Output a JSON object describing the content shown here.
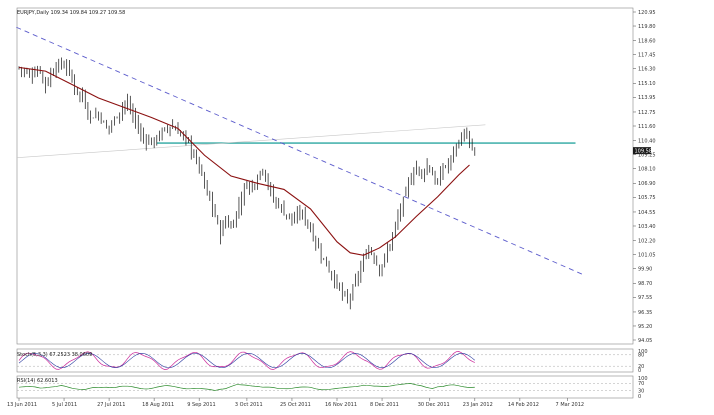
{
  "chart_title": "EURJPY,Daily  109.34 109.84 109.27 109.58",
  "colors": {
    "background": "#ffffff",
    "candle": "#111111",
    "moving_average": "#8b1010",
    "resistance_line": "#2aa6a0",
    "trendline": "#5c5ccc",
    "price_tag_bg": "#1a1a1a",
    "stoch_main": "#cc2a9a",
    "stoch_signal": "#2a3aa0",
    "rsi_line": "#2a8a2a"
  },
  "chart_data": {
    "type": "candlestick",
    "symbol": "EURJPY",
    "timeframe": "Daily",
    "ohlc_header": {
      "open": 109.34,
      "high": 109.84,
      "low": 109.27,
      "close": 109.58
    },
    "current_price_label": "109.58",
    "y_axis_ticks": [
      "120.95",
      "119.80",
      "118.60",
      "117.45",
      "116.30",
      "115.10",
      "113.95",
      "112.75",
      "111.60",
      "110.40",
      "109.25",
      "108.10",
      "106.90",
      "105.75",
      "104.55",
      "103.40",
      "102.20",
      "101.05",
      "99.90",
      "98.70",
      "97.55",
      "96.35",
      "95.20",
      "94.05"
    ],
    "ylim": [
      94.05,
      120.95
    ],
    "x_axis_labels": [
      "13 Jun 2011",
      "5 Jul 2011",
      "27 Jul 2011",
      "18 Aug 2011",
      "9 Sep 2011",
      "3 Oct 2011",
      "25 Oct 2011",
      "16 Nov 2011",
      "8 Dec 2011",
      "30 Dec 2011",
      "23 Jan 2012",
      "14 Feb 2012",
      "7 Mar 2012"
    ],
    "close_path": [
      [
        0,
        116.4
      ],
      [
        4,
        115.8
      ],
      [
        8,
        116.2
      ],
      [
        10,
        115.0
      ],
      [
        14,
        116.6
      ],
      [
        18,
        116.5
      ],
      [
        21,
        114.8
      ],
      [
        24,
        113.9
      ],
      [
        27,
        112.3
      ],
      [
        30,
        112.6
      ],
      [
        33,
        111.4
      ],
      [
        36,
        112.1
      ],
      [
        40,
        113.6
      ],
      [
        43,
        112.5
      ],
      [
        46,
        110.8
      ],
      [
        50,
        110.2
      ],
      [
        53,
        110.9
      ],
      [
        57,
        111.6
      ],
      [
        61,
        111.0
      ],
      [
        64,
        110.2
      ],
      [
        66,
        109.2
      ],
      [
        68,
        108.3
      ],
      [
        70,
        106.7
      ],
      [
        72,
        105.5
      ],
      [
        74,
        104.2
      ],
      [
        76,
        102.8
      ],
      [
        78,
        103.9
      ],
      [
        80,
        103.2
      ],
      [
        82,
        104.5
      ],
      [
        84,
        105.8
      ],
      [
        86,
        106.9
      ],
      [
        88,
        106.6
      ],
      [
        90,
        107.5
      ],
      [
        92,
        108.2
      ],
      [
        94,
        106.8
      ],
      [
        96,
        105.5
      ],
      [
        98,
        105.2
      ],
      [
        100,
        104.5
      ],
      [
        102,
        104.3
      ],
      [
        104,
        103.7
      ],
      [
        106,
        104.6
      ],
      [
        108,
        104.0
      ],
      [
        110,
        103.1
      ],
      [
        112,
        102.0
      ],
      [
        114,
        101.1
      ],
      [
        116,
        100.2
      ],
      [
        118,
        99.4
      ],
      [
        120,
        98.6
      ],
      [
        122,
        97.8
      ],
      [
        124,
        97.2
      ],
      [
        126,
        98.2
      ],
      [
        128,
        99.4
      ],
      [
        130,
        100.5
      ],
      [
        132,
        101.6
      ],
      [
        134,
        100.8
      ],
      [
        136,
        99.9
      ],
      [
        138,
        100.7
      ],
      [
        140,
        102.0
      ],
      [
        142,
        103.4
      ],
      [
        144,
        104.8
      ],
      [
        146,
        106.2
      ],
      [
        148,
        107.4
      ],
      [
        150,
        108.3
      ],
      [
        152,
        107.6
      ],
      [
        154,
        108.4
      ],
      [
        156,
        107.6
      ],
      [
        158,
        106.8
      ],
      [
        160,
        108.2
      ],
      [
        162,
        108.4
      ],
      [
        164,
        109.6
      ],
      [
        166,
        110.3
      ],
      [
        168,
        111.1
      ],
      [
        170,
        109.9
      ],
      [
        172,
        109.6
      ]
    ],
    "moving_average": {
      "label": "",
      "points": [
        [
          0,
          116.4
        ],
        [
          10,
          116.1
        ],
        [
          20,
          115.0
        ],
        [
          30,
          113.9
        ],
        [
          40,
          113.1
        ],
        [
          50,
          112.3
        ],
        [
          60,
          111.4
        ],
        [
          70,
          109.2
        ],
        [
          80,
          107.5
        ],
        [
          90,
          106.9
        ],
        [
          100,
          106.4
        ],
        [
          110,
          104.8
        ],
        [
          120,
          102.1
        ],
        [
          125,
          101.2
        ],
        [
          130,
          101.0
        ],
        [
          136,
          101.6
        ],
        [
          142,
          102.5
        ],
        [
          150,
          104.2
        ],
        [
          158,
          105.8
        ],
        [
          166,
          107.6
        ],
        [
          170,
          108.4
        ]
      ]
    },
    "resistance_level": 110.2,
    "trendline": {
      "points": [
        [
          -1,
          119.7
        ],
        [
          213,
          99.4
        ]
      ],
      "style": "dashed"
    },
    "indicators": [
      {
        "name": "Stoch(5,3,3)",
        "label": "Stoch(5,3,3) 67.2523 38.0609",
        "values": [
          67.2523,
          38.0609
        ],
        "ylim": [
          0,
          100
        ],
        "levels": [
          80,
          20
        ],
        "ticks": [
          "100",
          "80",
          "20",
          "0"
        ]
      },
      {
        "name": "RSI(14)",
        "label": "RSI(14) 62.6013",
        "values": [
          62.6013
        ],
        "ylim": [
          0,
          100
        ],
        "levels": [
          70,
          30
        ],
        "ticks": [
          "100",
          "70",
          "30",
          "0"
        ]
      }
    ]
  }
}
